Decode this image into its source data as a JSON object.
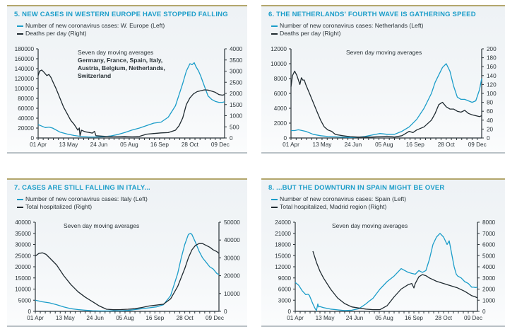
{
  "colors": {
    "cases": "#1b9dc9",
    "right": "#1f2a30",
    "title": "#1b9dc9"
  },
  "chart_data": [
    {
      "type": "line",
      "title": "5. NEW CASES IN WESTERN EUROPE HAVE STOPPED FALLING",
      "legend": [
        "Number of new coronavirus cases: W. Europe (Left)",
        "Deaths per day (Right)"
      ],
      "annotation": [
        "Seven day moving averages",
        "Germany, France, Spain, Italy,",
        "Austria, Belgium, Netherlands,",
        "Switzerland"
      ],
      "x_ticks": [
        "01 Apr",
        "13 May",
        "24 Jun",
        "05 Aug",
        "16 Sep",
        "28 Oct",
        "09 Dec"
      ],
      "x_range_days": [
        0,
        258
      ],
      "left_ticks": [
        "0",
        "20000",
        "40000",
        "60000",
        "80000",
        "100000",
        "120000",
        "140000",
        "160000",
        "180000"
      ],
      "right_ticks": [
        "0",
        "500",
        "1000",
        "1500",
        "2000",
        "2500",
        "3000",
        "3500",
        "4000"
      ],
      "ylim_left": [
        0,
        180000
      ],
      "ylim_right": [
        0,
        4000
      ],
      "series": [
        {
          "name": "Cases W. Europe (Left)",
          "axis": "left",
          "x": [
            0,
            5,
            10,
            15,
            20,
            30,
            40,
            50,
            60,
            70,
            80,
            90,
            100,
            110,
            120,
            130,
            140,
            150,
            160,
            170,
            180,
            190,
            200,
            205,
            210,
            213,
            216,
            218,
            220,
            222,
            225,
            230,
            235,
            240,
            245,
            250,
            255,
            258
          ],
          "y": [
            27000,
            24000,
            21000,
            22000,
            20000,
            12000,
            8000,
            5000,
            3000,
            2000,
            2000,
            2500,
            4000,
            7000,
            11000,
            16000,
            20000,
            25000,
            30000,
            32000,
            42000,
            65000,
            110000,
            135000,
            150000,
            148000,
            152000,
            145000,
            140000,
            135000,
            125000,
            105000,
            85000,
            78000,
            74000,
            72000,
            72000,
            73000
          ]
        },
        {
          "name": "Deaths per day (Right)",
          "axis": "right",
          "x": [
            0,
            2,
            5,
            8,
            12,
            15,
            18,
            20,
            25,
            30,
            35,
            40,
            45,
            50,
            55,
            57,
            58,
            60,
            65,
            70,
            75,
            78,
            80,
            85,
            90,
            100,
            110,
            120,
            130,
            140,
            150,
            160,
            170,
            180,
            190,
            195,
            200,
            205,
            210,
            215,
            220,
            225,
            230,
            235,
            240,
            245,
            250,
            255,
            258
          ],
          "y": [
            2800,
            3000,
            3050,
            2950,
            2800,
            2850,
            2700,
            2550,
            2200,
            1800,
            1400,
            1100,
            800,
            600,
            350,
            450,
            100,
            350,
            280,
            250,
            220,
            300,
            100,
            90,
            80,
            60,
            60,
            70,
            50,
            70,
            170,
            200,
            230,
            240,
            350,
            550,
            900,
            1500,
            1800,
            1980,
            2080,
            2120,
            2160,
            2150,
            2100,
            2050,
            1950,
            1920,
            1950
          ]
        }
      ]
    },
    {
      "type": "line",
      "title": "6. THE NETHERLANDS' FOURTH WAVE IS GATHERING SPEED",
      "legend": [
        "Number of new coronavirus cases: Netherlands (Left)",
        "Deaths per day (Right)"
      ],
      "annotation": [
        "Seven day moving averages"
      ],
      "x_ticks": [
        "01 Apr",
        "13 May",
        "24 Jun",
        "05 Aug",
        "16 Sep",
        "28 Oct",
        "09 Dec"
      ],
      "x_range_days": [
        0,
        258
      ],
      "left_ticks": [
        "0",
        "2000",
        "4000",
        "6000",
        "8000",
        "10000",
        "12000"
      ],
      "right_ticks": [
        "0",
        "20",
        "40",
        "60",
        "80",
        "100",
        "120",
        "140",
        "160",
        "180",
        "200"
      ],
      "ylim_left": [
        0,
        12000
      ],
      "ylim_right": [
        0,
        200
      ],
      "series": [
        {
          "name": "Cases Netherlands (Left)",
          "axis": "left",
          "x": [
            0,
            5,
            10,
            15,
            20,
            25,
            30,
            40,
            50,
            60,
            70,
            80,
            90,
            100,
            110,
            120,
            125,
            130,
            140,
            150,
            160,
            170,
            180,
            190,
            195,
            200,
            205,
            210,
            215,
            220,
            225,
            230,
            235,
            240,
            245,
            250,
            255,
            258
          ],
          "y": [
            1000,
            1000,
            1100,
            1000,
            900,
            700,
            500,
            300,
            200,
            150,
            100,
            80,
            100,
            200,
            400,
            600,
            550,
            500,
            500,
            900,
            1500,
            2500,
            4000,
            6000,
            7500,
            8500,
            9500,
            10000,
            9000,
            7000,
            5500,
            5200,
            5200,
            5000,
            4800,
            5000,
            6500,
            8000
          ]
        },
        {
          "name": "Deaths per day (Right)",
          "axis": "right",
          "x": [
            0,
            2,
            5,
            8,
            12,
            14,
            16,
            18,
            20,
            25,
            30,
            35,
            40,
            45,
            50,
            55,
            60,
            70,
            80,
            90,
            100,
            110,
            120,
            130,
            140,
            150,
            160,
            165,
            170,
            180,
            190,
            195,
            200,
            205,
            210,
            215,
            220,
            225,
            230,
            235,
            240,
            245,
            250,
            255,
            258
          ],
          "y": [
            115,
            140,
            150,
            140,
            120,
            135,
            130,
            130,
            120,
            100,
            80,
            60,
            40,
            25,
            18,
            15,
            8,
            5,
            3,
            2,
            2,
            2,
            3,
            4,
            2,
            5,
            15,
            12,
            18,
            25,
            40,
            55,
            75,
            80,
            70,
            65,
            65,
            60,
            58,
            62,
            55,
            52,
            50,
            48,
            50
          ]
        }
      ]
    },
    {
      "type": "line",
      "title": "7. CASES ARE STILL FALLING IN ITALY...",
      "legend": [
        "Number of new coronavirus cases: Italy (Left)",
        "Total hospitalized (Right)"
      ],
      "annotation": [
        "Seven day moving averages"
      ],
      "x_ticks": [
        "01 Apr",
        "13 May",
        "24 Jun",
        "05 Aug",
        "16 Sep",
        "28 Oct",
        "09 Dec"
      ],
      "x_range_days": [
        0,
        258
      ],
      "left_ticks": [
        "0",
        "5000",
        "10000",
        "15000",
        "20000",
        "25000",
        "30000",
        "35000",
        "40000"
      ],
      "right_ticks": [
        "0",
        "10000",
        "20000",
        "30000",
        "40000",
        "50000"
      ],
      "ylim_left": [
        0,
        40000
      ],
      "ylim_right": [
        0,
        50000
      ],
      "series": [
        {
          "name": "Cases Italy (Left)",
          "axis": "left",
          "x": [
            0,
            10,
            20,
            30,
            40,
            50,
            60,
            70,
            80,
            90,
            100,
            110,
            120,
            130,
            140,
            150,
            160,
            170,
            180,
            190,
            200,
            205,
            210,
            215,
            218,
            220,
            225,
            230,
            235,
            240,
            245,
            250,
            255,
            258
          ],
          "y": [
            5000,
            4300,
            3800,
            3000,
            2000,
            1200,
            800,
            500,
            300,
            200,
            200,
            250,
            300,
            400,
            800,
            1200,
            1600,
            2000,
            3000,
            7000,
            17000,
            24000,
            30000,
            34500,
            35000,
            34500,
            31000,
            27000,
            24000,
            22000,
            20000,
            19000,
            17000,
            16500
          ]
        },
        {
          "name": "Total hospitalized (Right)",
          "axis": "right",
          "x": [
            0,
            5,
            10,
            15,
            20,
            30,
            40,
            50,
            60,
            70,
            80,
            90,
            100,
            110,
            120,
            130,
            140,
            150,
            160,
            170,
            180,
            190,
            200,
            210,
            215,
            220,
            225,
            230,
            235,
            240,
            245,
            250,
            255,
            258
          ],
          "y": [
            31000,
            32500,
            32800,
            32000,
            30000,
            26000,
            20000,
            15000,
            11000,
            8000,
            5500,
            3000,
            1200,
            900,
            1000,
            1200,
            1500,
            2200,
            3000,
            3500,
            4000,
            7000,
            14000,
            24000,
            30000,
            34500,
            37000,
            38000,
            38000,
            37000,
            36000,
            34500,
            33500,
            32500
          ]
        }
      ]
    },
    {
      "type": "line",
      "title": "8.  ...BUT THE DOWNTURN IN SPAIN MIGHT BE OVER",
      "legend": [
        "Number of new coronavirus cases: Spain (Left)",
        "Total hospitalized, Madrid region (Right)"
      ],
      "annotation": [
        "Seven day moving averages"
      ],
      "x_ticks": [
        "01 Apr",
        "13 May",
        "24 Jun",
        "05 Aug",
        "16 Sep",
        "28 Oct",
        "09 Dec"
      ],
      "x_range_days": [
        0,
        258
      ],
      "left_ticks": [
        "0",
        "3000",
        "6000",
        "9000",
        "12000",
        "15000",
        "18000",
        "21000",
        "24000"
      ],
      "right_ticks": [
        "0",
        "1000",
        "2000",
        "3000",
        "4000",
        "5000",
        "6000",
        "7000",
        "8000"
      ],
      "ylim_left": [
        0,
        24000
      ],
      "ylim_right": [
        0,
        8000
      ],
      "series": [
        {
          "name": "Cases Spain (Left)",
          "axis": "left",
          "x": [
            0,
            5,
            10,
            15,
            18,
            20,
            25,
            28,
            30,
            32,
            33,
            35,
            40,
            45,
            50,
            60,
            70,
            80,
            90,
            100,
            105,
            110,
            120,
            130,
            140,
            150,
            160,
            165,
            170,
            175,
            180,
            185,
            190,
            195,
            200,
            205,
            210,
            215,
            218,
            220,
            223,
            225,
            228,
            230,
            235,
            240,
            245,
            250,
            253,
            255,
            258
          ],
          "y": [
            7800,
            7000,
            5500,
            4500,
            4600,
            4300,
            2000,
            800,
            200,
            2000,
            1200,
            1300,
            1000,
            800,
            600,
            400,
            200,
            300,
            700,
            2000,
            2800,
            3500,
            6000,
            8000,
            9500,
            11500,
            10500,
            10200,
            10000,
            11000,
            10500,
            11000,
            14000,
            18000,
            20000,
            21000,
            20000,
            18000,
            19000,
            17000,
            14000,
            12000,
            10000,
            9500,
            9000,
            8000,
            7500,
            6500,
            6500,
            6400,
            6500
          ]
        },
        {
          "name": "Total hospitalized, Madrid region (Right)",
          "axis": "right",
          "x": [
            25,
            30,
            35,
            40,
            50,
            60,
            70,
            80,
            90,
            100,
            110,
            120,
            130,
            140,
            150,
            160,
            165,
            168,
            170,
            175,
            180,
            185,
            190,
            200,
            210,
            220,
            230,
            240,
            245,
            250,
            255,
            258
          ],
          "y": [
            5400,
            4400,
            3600,
            3000,
            2000,
            1200,
            700,
            400,
            300,
            200,
            150,
            150,
            500,
            1300,
            2000,
            2400,
            2500,
            2100,
            2500,
            3100,
            3300,
            3200,
            3000,
            2700,
            2500,
            2300,
            2100,
            1800,
            1600,
            1400,
            1300,
            1200
          ]
        }
      ]
    }
  ]
}
